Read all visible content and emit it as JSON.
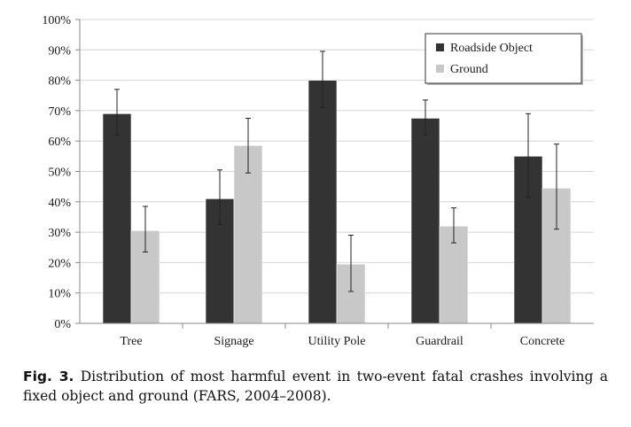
{
  "chart_data": {
    "type": "bar",
    "categories": [
      "Tree",
      "Signage",
      "Utility Pole",
      "Guardrail",
      "Concrete"
    ],
    "series": [
      {
        "name": "Roadside Object",
        "values": [
          69,
          41,
          80,
          67.5,
          55
        ],
        "err_low": [
          62,
          32.5,
          71,
          62,
          41.5
        ],
        "err_high": [
          77,
          50.5,
          89.5,
          73.5,
          69
        ],
        "color": "#333333"
      },
      {
        "name": "Ground",
        "values": [
          30.5,
          58.5,
          19.5,
          32,
          44.5
        ],
        "err_low": [
          23.5,
          49.5,
          10.5,
          26.5,
          31
        ],
        "err_high": [
          38.5,
          67.5,
          29,
          38,
          59
        ],
        "color": "#c8c8c8"
      }
    ],
    "y_ticks": [
      "0%",
      "10%",
      "20%",
      "30%",
      "40%",
      "50%",
      "60%",
      "70%",
      "80%",
      "90%",
      "100%"
    ],
    "ylim": [
      0,
      100
    ],
    "grid": true,
    "legend_position": "top-right"
  },
  "caption": {
    "label": "Fig. 3.",
    "text": "Distribution of most harmful event in two-event fatal crashes involving a fixed object and ground (FARS, 2004–2008)."
  }
}
